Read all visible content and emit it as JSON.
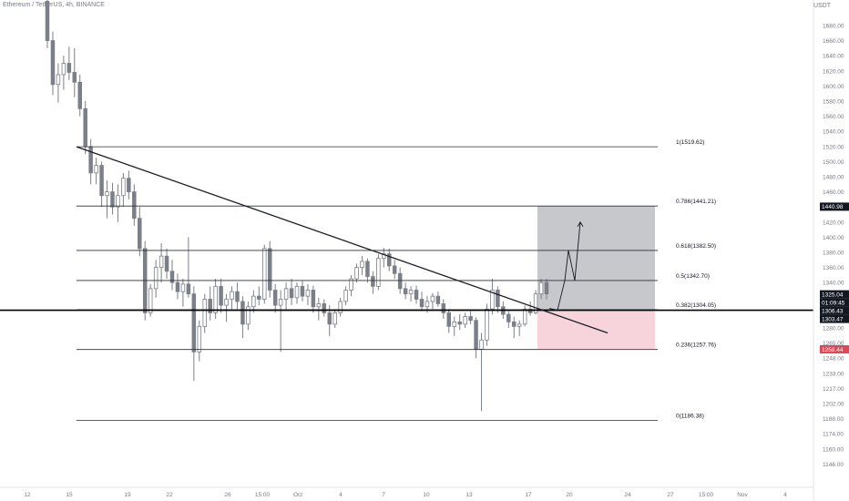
{
  "header": {
    "symbol_title": "Ethereum / TetherUS, 4h, BINANCE",
    "currency": "USDT"
  },
  "colors": {
    "background": "#ffffff",
    "candle": "#7b7f88",
    "fib_line": "#2a2e39",
    "trendline": "#1c1f26",
    "profit_zone": "#c7c8cb",
    "loss_zone": "#f7d3dc",
    "axis_text": "#787b86",
    "tag_dark": "#131722",
    "tag_loss": "#e04858",
    "axis_border": "#e0e3eb"
  },
  "chart_data": {
    "type": "candlestick",
    "title": "Ethereum / TetherUS, 4h, BINANCE",
    "quote_currency": "USDT",
    "x_tick_labels": [
      "12",
      "15",
      "19",
      "22",
      "26",
      "15:00",
      "Oct",
      "4",
      "7",
      "10",
      "13",
      "17",
      "20",
      "24",
      "27",
      "15:00",
      "Nov",
      "4"
    ],
    "y_tick_labels": [
      "1680.00",
      "1660.00",
      "1640.00",
      "1620.00",
      "1600.00",
      "1580.00",
      "1560.00",
      "1540.00",
      "1520.00",
      "1500.00",
      "1480.00",
      "1460.00",
      "1440.00",
      "1420.00",
      "1400.00",
      "1380.00",
      "1360.00",
      "1340.00",
      "1320.00",
      "1300.00",
      "1280.00",
      "1265.00",
      "1248.00",
      "1233.00",
      "1217.00",
      "1202.00",
      "1188.00",
      "1174.00",
      "1160.00",
      "1146.00"
    ],
    "fibonacci_levels": [
      {
        "ratio": 1,
        "price": 1519.62,
        "label": "1(1519.62)"
      },
      {
        "ratio": 0.786,
        "price": 1441.21,
        "label": "0.786(1441.21)"
      },
      {
        "ratio": 0.618,
        "price": 1382.5,
        "label": "0.618(1382.50)"
      },
      {
        "ratio": 0.5,
        "price": 1342.7,
        "label": "0.5(1342.70)"
      },
      {
        "ratio": 0.382,
        "price": 1304.05,
        "label": "0.382(1304.05)"
      },
      {
        "ratio": 0.236,
        "price": 1257.76,
        "label": "0.236(1257.76)"
      },
      {
        "ratio": 0,
        "price": 1186.38,
        "label": "0(1186.38)"
      }
    ],
    "horizontal_support": 1303.47,
    "price_tags": [
      {
        "label": "1440.98",
        "style": "dark"
      },
      {
        "label": "1325.04",
        "style": "dark"
      },
      {
        "label": "01:09:45",
        "style": "dark"
      },
      {
        "label": "1306.43",
        "style": "dark"
      },
      {
        "label": "1303.47",
        "style": "dark"
      },
      {
        "label": "1258.44",
        "style": "loss"
      }
    ],
    "position": {
      "type": "long",
      "entry": 1303.47,
      "target": 1440.98,
      "stop": 1258.44
    },
    "ohlc_estimated": [
      {
        "o": 1712,
        "h": 1740,
        "l": 1650,
        "c": 1660
      },
      {
        "o": 1660,
        "h": 1672,
        "l": 1588,
        "c": 1602
      },
      {
        "o": 1602,
        "h": 1630,
        "l": 1578,
        "c": 1615
      },
      {
        "o": 1615,
        "h": 1640,
        "l": 1595,
        "c": 1630
      },
      {
        "o": 1630,
        "h": 1652,
        "l": 1608,
        "c": 1618
      },
      {
        "o": 1618,
        "h": 1650,
        "l": 1585,
        "c": 1605
      },
      {
        "o": 1605,
        "h": 1615,
        "l": 1560,
        "c": 1570
      },
      {
        "o": 1570,
        "h": 1580,
        "l": 1510,
        "c": 1520
      },
      {
        "o": 1520,
        "h": 1530,
        "l": 1470,
        "c": 1485
      },
      {
        "o": 1485,
        "h": 1505,
        "l": 1470,
        "c": 1495
      },
      {
        "o": 1495,
        "h": 1500,
        "l": 1440,
        "c": 1455
      },
      {
        "o": 1455,
        "h": 1475,
        "l": 1425,
        "c": 1460
      },
      {
        "o": 1460,
        "h": 1472,
        "l": 1430,
        "c": 1440
      },
      {
        "o": 1440,
        "h": 1470,
        "l": 1420,
        "c": 1455
      },
      {
        "o": 1455,
        "h": 1485,
        "l": 1440,
        "c": 1478
      },
      {
        "o": 1478,
        "h": 1488,
        "l": 1450,
        "c": 1460
      },
      {
        "o": 1460,
        "h": 1470,
        "l": 1415,
        "c": 1425
      },
      {
        "o": 1425,
        "h": 1440,
        "l": 1375,
        "c": 1385
      },
      {
        "o": 1385,
        "h": 1395,
        "l": 1290,
        "c": 1300
      },
      {
        "o": 1300,
        "h": 1338,
        "l": 1295,
        "c": 1332
      },
      {
        "o": 1332,
        "h": 1370,
        "l": 1320,
        "c": 1360
      },
      {
        "o": 1360,
        "h": 1392,
        "l": 1340,
        "c": 1375
      },
      {
        "o": 1375,
        "h": 1385,
        "l": 1345,
        "c": 1355
      },
      {
        "o": 1355,
        "h": 1370,
        "l": 1330,
        "c": 1340
      },
      {
        "o": 1340,
        "h": 1352,
        "l": 1318,
        "c": 1328
      },
      {
        "o": 1328,
        "h": 1345,
        "l": 1308,
        "c": 1338
      },
      {
        "o": 1338,
        "h": 1400,
        "l": 1320,
        "c": 1325
      },
      {
        "o": 1325,
        "h": 1335,
        "l": 1225,
        "c": 1255
      },
      {
        "o": 1255,
        "h": 1290,
        "l": 1245,
        "c": 1282
      },
      {
        "o": 1282,
        "h": 1325,
        "l": 1275,
        "c": 1318
      },
      {
        "o": 1318,
        "h": 1335,
        "l": 1290,
        "c": 1300
      },
      {
        "o": 1300,
        "h": 1345,
        "l": 1292,
        "c": 1335
      },
      {
        "o": 1335,
        "h": 1345,
        "l": 1300,
        "c": 1310
      },
      {
        "o": 1310,
        "h": 1325,
        "l": 1288,
        "c": 1318
      },
      {
        "o": 1318,
        "h": 1335,
        "l": 1305,
        "c": 1328
      },
      {
        "o": 1328,
        "h": 1340,
        "l": 1305,
        "c": 1315
      },
      {
        "o": 1315,
        "h": 1322,
        "l": 1270,
        "c": 1285
      },
      {
        "o": 1285,
        "h": 1315,
        "l": 1278,
        "c": 1308
      },
      {
        "o": 1308,
        "h": 1330,
        "l": 1300,
        "c": 1322
      },
      {
        "o": 1322,
        "h": 1335,
        "l": 1310,
        "c": 1318
      },
      {
        "o": 1318,
        "h": 1390,
        "l": 1312,
        "c": 1385
      },
      {
        "o": 1385,
        "h": 1395,
        "l": 1320,
        "c": 1330
      },
      {
        "o": 1330,
        "h": 1338,
        "l": 1300,
        "c": 1310
      },
      {
        "o": 1310,
        "h": 1330,
        "l": 1255,
        "c": 1318
      },
      {
        "o": 1318,
        "h": 1340,
        "l": 1305,
        "c": 1332
      },
      {
        "o": 1332,
        "h": 1345,
        "l": 1310,
        "c": 1320
      },
      {
        "o": 1320,
        "h": 1340,
        "l": 1312,
        "c": 1335
      },
      {
        "o": 1335,
        "h": 1342,
        "l": 1315,
        "c": 1322
      },
      {
        "o": 1322,
        "h": 1338,
        "l": 1310,
        "c": 1330
      },
      {
        "o": 1330,
        "h": 1336,
        "l": 1300,
        "c": 1308
      },
      {
        "o": 1308,
        "h": 1320,
        "l": 1290,
        "c": 1312
      },
      {
        "o": 1312,
        "h": 1318,
        "l": 1295,
        "c": 1300
      },
      {
        "o": 1300,
        "h": 1310,
        "l": 1272,
        "c": 1285
      },
      {
        "o": 1285,
        "h": 1305,
        "l": 1280,
        "c": 1300
      },
      {
        "o": 1300,
        "h": 1320,
        "l": 1295,
        "c": 1315
      },
      {
        "o": 1315,
        "h": 1335,
        "l": 1310,
        "c": 1330
      },
      {
        "o": 1330,
        "h": 1350,
        "l": 1322,
        "c": 1345
      },
      {
        "o": 1345,
        "h": 1365,
        "l": 1340,
        "c": 1360
      },
      {
        "o": 1360,
        "h": 1375,
        "l": 1350,
        "c": 1368
      },
      {
        "o": 1368,
        "h": 1372,
        "l": 1340,
        "c": 1348
      },
      {
        "o": 1348,
        "h": 1355,
        "l": 1325,
        "c": 1335
      },
      {
        "o": 1335,
        "h": 1378,
        "l": 1330,
        "c": 1372
      },
      {
        "o": 1372,
        "h": 1386,
        "l": 1360,
        "c": 1378
      },
      {
        "o": 1378,
        "h": 1385,
        "l": 1355,
        "c": 1362
      },
      {
        "o": 1362,
        "h": 1370,
        "l": 1345,
        "c": 1352
      },
      {
        "o": 1352,
        "h": 1360,
        "l": 1325,
        "c": 1332
      },
      {
        "o": 1332,
        "h": 1340,
        "l": 1318,
        "c": 1325
      },
      {
        "o": 1325,
        "h": 1335,
        "l": 1315,
        "c": 1330
      },
      {
        "o": 1330,
        "h": 1336,
        "l": 1312,
        "c": 1318
      },
      {
        "o": 1318,
        "h": 1328,
        "l": 1302,
        "c": 1308
      },
      {
        "o": 1308,
        "h": 1322,
        "l": 1300,
        "c": 1315
      },
      {
        "o": 1315,
        "h": 1326,
        "l": 1305,
        "c": 1322
      },
      {
        "o": 1322,
        "h": 1328,
        "l": 1308,
        "c": 1312
      },
      {
        "o": 1312,
        "h": 1318,
        "l": 1292,
        "c": 1300
      },
      {
        "o": 1300,
        "h": 1305,
        "l": 1275,
        "c": 1282
      },
      {
        "o": 1282,
        "h": 1295,
        "l": 1272,
        "c": 1288
      },
      {
        "o": 1288,
        "h": 1298,
        "l": 1278,
        "c": 1285
      },
      {
        "o": 1285,
        "h": 1300,
        "l": 1280,
        "c": 1295
      },
      {
        "o": 1295,
        "h": 1302,
        "l": 1285,
        "c": 1290
      },
      {
        "o": 1290,
        "h": 1294,
        "l": 1248,
        "c": 1258
      },
      {
        "o": 1258,
        "h": 1275,
        "l": 1195,
        "c": 1268
      },
      {
        "o": 1268,
        "h": 1312,
        "l": 1262,
        "c": 1305
      },
      {
        "o": 1305,
        "h": 1345,
        "l": 1298,
        "c": 1330
      },
      {
        "o": 1330,
        "h": 1335,
        "l": 1300,
        "c": 1308
      },
      {
        "o": 1308,
        "h": 1315,
        "l": 1292,
        "c": 1298
      },
      {
        "o": 1298,
        "h": 1302,
        "l": 1280,
        "c": 1288
      },
      {
        "o": 1288,
        "h": 1295,
        "l": 1270,
        "c": 1282
      },
      {
        "o": 1282,
        "h": 1290,
        "l": 1272,
        "c": 1285
      },
      {
        "o": 1285,
        "h": 1310,
        "l": 1282,
        "c": 1305
      },
      {
        "o": 1305,
        "h": 1315,
        "l": 1296,
        "c": 1300
      },
      {
        "o": 1300,
        "h": 1330,
        "l": 1298,
        "c": 1325
      },
      {
        "o": 1325,
        "h": 1345,
        "l": 1318,
        "c": 1340
      },
      {
        "o": 1340,
        "h": 1345,
        "l": 1318,
        "c": 1325
      }
    ]
  }
}
